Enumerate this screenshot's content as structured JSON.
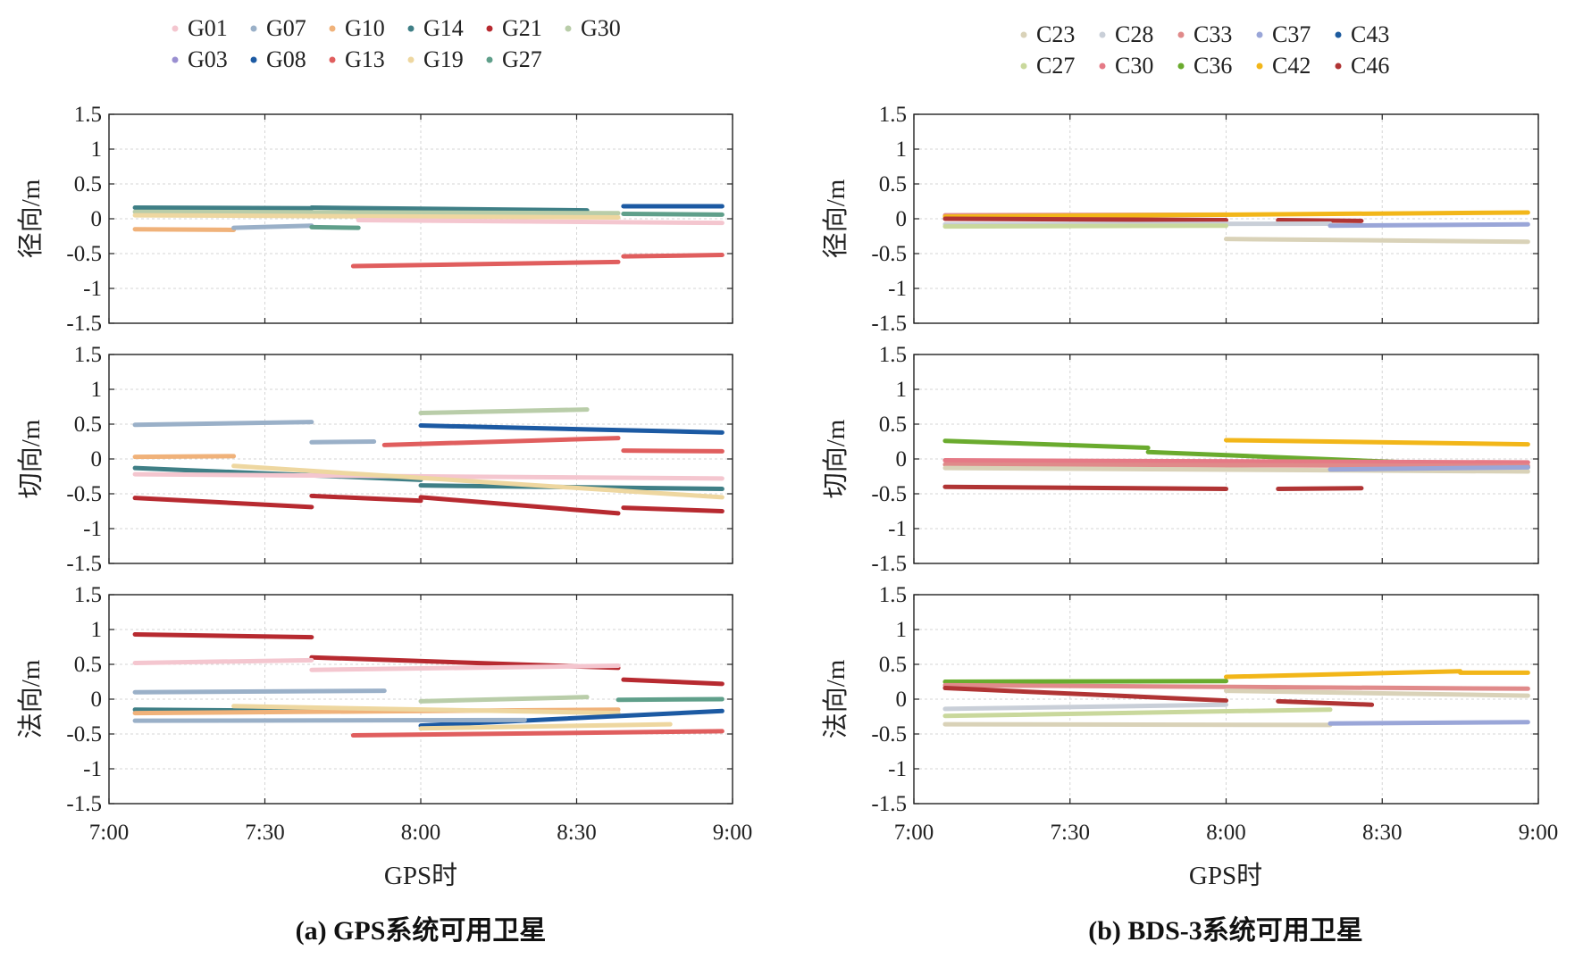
{
  "chart_data": [
    {
      "type": "line",
      "caption": "(a) GPS系统可用卫星",
      "xlabel": "GPS时",
      "x_ticks": [
        "7:00",
        "7:30",
        "8:00",
        "8:30",
        "9:00"
      ],
      "x_range": [
        "7:00",
        "9:00"
      ],
      "y_ticks": [
        "1.5",
        "1",
        "0.5",
        "0",
        "-0.5",
        "-1",
        "-1.5"
      ],
      "ylim": [
        -1.5,
        1.5
      ],
      "grid": true,
      "legend_position": "top",
      "legend": [
        {
          "name": "G01",
          "color": "#f4c6cf"
        },
        {
          "name": "G07",
          "color": "#9ab0c8"
        },
        {
          "name": "G10",
          "color": "#f0b27a"
        },
        {
          "name": "G14",
          "color": "#3f7f86"
        },
        {
          "name": "G21",
          "color": "#b72a30"
        },
        {
          "name": "G30",
          "color": "#b9cda9"
        },
        {
          "name": "G03",
          "color": "#9a8fd1"
        },
        {
          "name": "G08",
          "color": "#1c5aa3"
        },
        {
          "name": "G13",
          "color": "#e05e5e"
        },
        {
          "name": "G19",
          "color": "#eed7a0"
        },
        {
          "name": "G27",
          "color": "#5f9f8a"
        }
      ],
      "panels": [
        {
          "ylabel": "径向/m",
          "segments": [
            {
              "sat": "G14",
              "x": [
                "7:05",
                "7:39"
              ],
              "y": [
                0.16,
                0.15
              ]
            },
            {
              "sat": "G14",
              "x": [
                "7:39",
                "8:32"
              ],
              "y": [
                0.16,
                0.12
              ]
            },
            {
              "sat": "G30",
              "x": [
                "7:05",
                "8:38"
              ],
              "y": [
                0.1,
                0.08
              ]
            },
            {
              "sat": "G19",
              "x": [
                "7:05",
                "8:38"
              ],
              "y": [
                0.05,
                0.02
              ]
            },
            {
              "sat": "G10",
              "x": [
                "7:05",
                "7:24"
              ],
              "y": [
                -0.15,
                -0.16
              ]
            },
            {
              "sat": "G07",
              "x": [
                "7:24",
                "7:39"
              ],
              "y": [
                -0.13,
                -0.1
              ]
            },
            {
              "sat": "G27",
              "x": [
                "7:39",
                "7:48"
              ],
              "y": [
                -0.12,
                -0.13
              ]
            },
            {
              "sat": "G01",
              "x": [
                "7:48",
                "8:58"
              ],
              "y": [
                -0.02,
                -0.06
              ]
            },
            {
              "sat": "G08",
              "x": [
                "8:39",
                "8:58"
              ],
              "y": [
                0.18,
                0.18
              ]
            },
            {
              "sat": "G27",
              "x": [
                "8:39",
                "8:58"
              ],
              "y": [
                0.07,
                0.06
              ]
            },
            {
              "sat": "G13",
              "x": [
                "7:47",
                "8:38"
              ],
              "y": [
                -0.68,
                -0.62
              ]
            },
            {
              "sat": "G13",
              "x": [
                "8:39",
                "8:58"
              ],
              "y": [
                -0.54,
                -0.52
              ]
            }
          ]
        },
        {
          "ylabel": "切向/m",
          "segments": [
            {
              "sat": "G07",
              "x": [
                "7:05",
                "7:39"
              ],
              "y": [
                0.49,
                0.53
              ]
            },
            {
              "sat": "G07",
              "x": [
                "7:39",
                "7:51"
              ],
              "y": [
                0.24,
                0.25
              ]
            },
            {
              "sat": "G30",
              "x": [
                "8:00",
                "8:32"
              ],
              "y": [
                0.66,
                0.71
              ]
            },
            {
              "sat": "G08",
              "x": [
                "8:00",
                "8:58"
              ],
              "y": [
                0.48,
                0.38
              ]
            },
            {
              "sat": "G13",
              "x": [
                "7:53",
                "8:38"
              ],
              "y": [
                0.2,
                0.3
              ]
            },
            {
              "sat": "G13",
              "x": [
                "8:39",
                "8:58"
              ],
              "y": [
                0.12,
                0.11
              ]
            },
            {
              "sat": "G10",
              "x": [
                "7:05",
                "7:24"
              ],
              "y": [
                0.03,
                0.04
              ]
            },
            {
              "sat": "G14",
              "x": [
                "7:05",
                "8:00"
              ],
              "y": [
                -0.13,
                -0.3
              ]
            },
            {
              "sat": "G14",
              "x": [
                "8:00",
                "8:58"
              ],
              "y": [
                -0.38,
                -0.43
              ]
            },
            {
              "sat": "G01",
              "x": [
                "7:05",
                "8:58"
              ],
              "y": [
                -0.22,
                -0.28
              ]
            },
            {
              "sat": "G19",
              "x": [
                "7:24",
                "8:58"
              ],
              "y": [
                -0.1,
                -0.55
              ]
            },
            {
              "sat": "G21",
              "x": [
                "7:05",
                "7:39"
              ],
              "y": [
                -0.56,
                -0.69
              ]
            },
            {
              "sat": "G21",
              "x": [
                "7:39",
                "8:00"
              ],
              "y": [
                -0.53,
                -0.6
              ]
            },
            {
              "sat": "G21",
              "x": [
                "8:00",
                "8:38"
              ],
              "y": [
                -0.55,
                -0.78
              ]
            },
            {
              "sat": "G21",
              "x": [
                "8:39",
                "8:58"
              ],
              "y": [
                -0.7,
                -0.75
              ]
            }
          ]
        },
        {
          "ylabel": "法向/m",
          "segments": [
            {
              "sat": "G21",
              "x": [
                "7:05",
                "7:39"
              ],
              "y": [
                0.93,
                0.89
              ]
            },
            {
              "sat": "G21",
              "x": [
                "7:39",
                "8:38"
              ],
              "y": [
                0.6,
                0.45
              ]
            },
            {
              "sat": "G21",
              "x": [
                "8:39",
                "8:58"
              ],
              "y": [
                0.28,
                0.22
              ]
            },
            {
              "sat": "G01",
              "x": [
                "7:05",
                "7:39"
              ],
              "y": [
                0.52,
                0.56
              ]
            },
            {
              "sat": "G01",
              "x": [
                "7:39",
                "8:38"
              ],
              "y": [
                0.42,
                0.48
              ]
            },
            {
              "sat": "G07",
              "x": [
                "7:05",
                "7:53"
              ],
              "y": [
                0.1,
                0.12
              ]
            },
            {
              "sat": "G30",
              "x": [
                "8:00",
                "8:32"
              ],
              "y": [
                -0.03,
                0.03
              ]
            },
            {
              "sat": "G27",
              "x": [
                "8:38",
                "8:58"
              ],
              "y": [
                -0.01,
                0.0
              ]
            },
            {
              "sat": "G14",
              "x": [
                "7:05",
                "7:39"
              ],
              "y": [
                -0.15,
                -0.17
              ]
            },
            {
              "sat": "G10",
              "x": [
                "7:05",
                "8:38"
              ],
              "y": [
                -0.2,
                -0.15
              ]
            },
            {
              "sat": "G19",
              "x": [
                "7:24",
                "8:38"
              ],
              "y": [
                -0.1,
                -0.2
              ]
            },
            {
              "sat": "G08",
              "x": [
                "8:00",
                "8:58"
              ],
              "y": [
                -0.38,
                -0.17
              ]
            },
            {
              "sat": "G07",
              "x": [
                "7:05",
                "8:20"
              ],
              "y": [
                -0.31,
                -0.3
              ]
            },
            {
              "sat": "G19",
              "x": [
                "8:00",
                "8:48"
              ],
              "y": [
                -0.42,
                -0.36
              ]
            },
            {
              "sat": "G13",
              "x": [
                "7:47",
                "8:58"
              ],
              "y": [
                -0.52,
                -0.46
              ]
            }
          ]
        }
      ]
    },
    {
      "type": "line",
      "caption": "(b) BDS-3系统可用卫星",
      "xlabel": "GPS时",
      "x_ticks": [
        "7:00",
        "7:30",
        "8:00",
        "8:30",
        "9:00"
      ],
      "x_range": [
        "7:00",
        "9:00"
      ],
      "y_ticks": [
        "1.5",
        "1",
        "0.5",
        "0",
        "-0.5",
        "-1",
        "-1.5"
      ],
      "ylim": [
        -1.5,
        1.5
      ],
      "grid": true,
      "legend_position": "top",
      "legend": [
        {
          "name": "C23",
          "color": "#d9d2b8"
        },
        {
          "name": "C28",
          "color": "#c9cfd8"
        },
        {
          "name": "C33",
          "color": "#e08a8a"
        },
        {
          "name": "C37",
          "color": "#9aa6d8"
        },
        {
          "name": "C43",
          "color": "#1d5b9e"
        },
        {
          "name": "C27",
          "color": "#c9d89c"
        },
        {
          "name": "C30",
          "color": "#e57a86"
        },
        {
          "name": "C36",
          "color": "#6aab2e"
        },
        {
          "name": "C42",
          "color": "#f2b619"
        },
        {
          "name": "C46",
          "color": "#b03434"
        }
      ],
      "panels": [
        {
          "ylabel": "径向/m",
          "segments": [
            {
              "sat": "C33",
              "x": [
                "7:06",
                "8:00"
              ],
              "y": [
                0.05,
                0.06
              ]
            },
            {
              "sat": "C42",
              "x": [
                "7:06",
                "8:58"
              ],
              "y": [
                0.03,
                0.09
              ]
            },
            {
              "sat": "C46",
              "x": [
                "7:06",
                "8:00"
              ],
              "y": [
                0.0,
                -0.02
              ]
            },
            {
              "sat": "C46",
              "x": [
                "8:10",
                "8:26"
              ],
              "y": [
                -0.02,
                -0.03
              ]
            },
            {
              "sat": "C28",
              "x": [
                "7:06",
                "8:20"
              ],
              "y": [
                -0.08,
                -0.07
              ]
            },
            {
              "sat": "C27",
              "x": [
                "7:06",
                "8:00"
              ],
              "y": [
                -0.11,
                -0.1
              ]
            },
            {
              "sat": "C37",
              "x": [
                "8:20",
                "8:58"
              ],
              "y": [
                -0.1,
                -0.08
              ]
            },
            {
              "sat": "C23",
              "x": [
                "8:00",
                "8:58"
              ],
              "y": [
                -0.29,
                -0.33
              ]
            }
          ]
        },
        {
          "ylabel": "切向/m",
          "segments": [
            {
              "sat": "C36",
              "x": [
                "7:06",
                "7:45"
              ],
              "y": [
                0.26,
                0.16
              ]
            },
            {
              "sat": "C36",
              "x": [
                "7:45",
                "8:58"
              ],
              "y": [
                0.1,
                -0.12
              ]
            },
            {
              "sat": "C42",
              "x": [
                "8:00",
                "8:58"
              ],
              "y": [
                0.27,
                0.21
              ]
            },
            {
              "sat": "C30",
              "x": [
                "7:06",
                "8:58"
              ],
              "y": [
                -0.02,
                -0.05
              ]
            },
            {
              "sat": "C33",
              "x": [
                "7:06",
                "8:58"
              ],
              "y": [
                -0.08,
                -0.1
              ]
            },
            {
              "sat": "C23",
              "x": [
                "7:06",
                "8:58"
              ],
              "y": [
                -0.13,
                -0.18
              ]
            },
            {
              "sat": "C37",
              "x": [
                "8:20",
                "8:58"
              ],
              "y": [
                -0.15,
                -0.12
              ]
            },
            {
              "sat": "C46",
              "x": [
                "7:06",
                "8:00"
              ],
              "y": [
                -0.4,
                -0.43
              ]
            },
            {
              "sat": "C46",
              "x": [
                "8:10",
                "8:26"
              ],
              "y": [
                -0.43,
                -0.42
              ]
            }
          ]
        },
        {
          "ylabel": "法向/m",
          "segments": [
            {
              "sat": "C36",
              "x": [
                "7:06",
                "8:00"
              ],
              "y": [
                0.25,
                0.26
              ]
            },
            {
              "sat": "C42",
              "x": [
                "8:00",
                "8:45"
              ],
              "y": [
                0.32,
                0.4
              ]
            },
            {
              "sat": "C42",
              "x": [
                "8:45",
                "8:58"
              ],
              "y": [
                0.38,
                0.38
              ]
            },
            {
              "sat": "C33",
              "x": [
                "7:06",
                "8:58"
              ],
              "y": [
                0.2,
                0.15
              ]
            },
            {
              "sat": "C23",
              "x": [
                "8:00",
                "8:58"
              ],
              "y": [
                0.12,
                0.05
              ]
            },
            {
              "sat": "C46",
              "x": [
                "7:06",
                "8:00"
              ],
              "y": [
                0.16,
                -0.02
              ]
            },
            {
              "sat": "C46",
              "x": [
                "8:10",
                "8:28"
              ],
              "y": [
                -0.03,
                -0.08
              ]
            },
            {
              "sat": "C28",
              "x": [
                "7:06",
                "8:00"
              ],
              "y": [
                -0.14,
                -0.08
              ]
            },
            {
              "sat": "C27",
              "x": [
                "7:06",
                "8:20"
              ],
              "y": [
                -0.24,
                -0.15
              ]
            },
            {
              "sat": "C23",
              "x": [
                "7:06",
                "8:20"
              ],
              "y": [
                -0.36,
                -0.37
              ]
            },
            {
              "sat": "C37",
              "x": [
                "8:20",
                "8:58"
              ],
              "y": [
                -0.35,
                -0.33
              ]
            }
          ]
        }
      ]
    }
  ]
}
